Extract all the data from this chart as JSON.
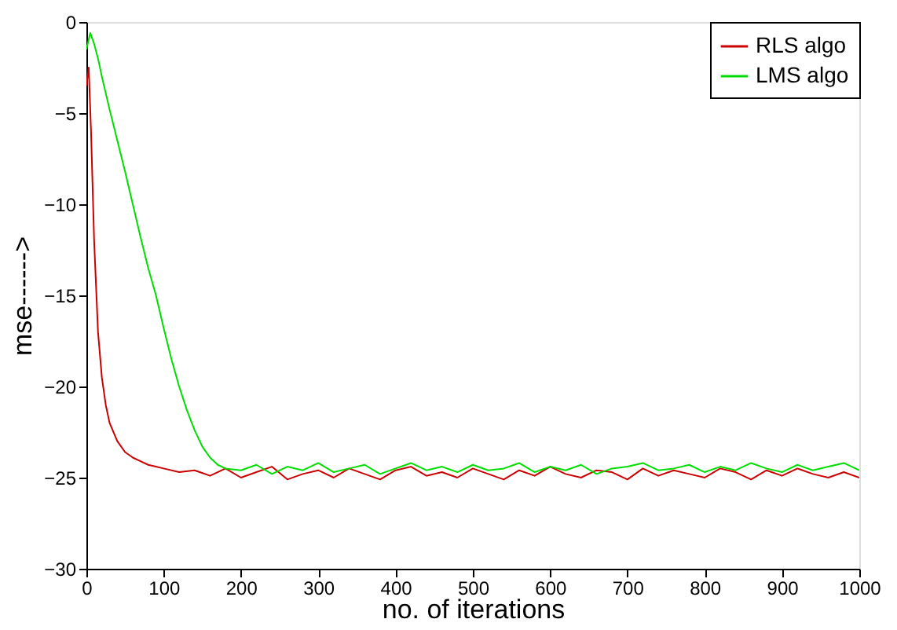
{
  "chart_data": {
    "type": "line",
    "xlabel": "no. of iterations",
    "ylabel": "mse------>",
    "xlim": [
      0,
      1000
    ],
    "xticks": [
      0,
      100,
      200,
      300,
      400,
      500,
      600,
      700,
      800,
      900,
      1000
    ],
    "ylim": [
      -30,
      0
    ],
    "yticks": [
      -30,
      -25,
      -20,
      -15,
      -10,
      -5,
      0
    ],
    "grid": false,
    "legend": "top right",
    "line_style": "solid",
    "marker": "none",
    "series": [
      {
        "name": "RLS algo",
        "color": "#cc0000",
        "x": [
          0,
          3,
          6,
          10,
          15,
          20,
          25,
          30,
          40,
          50,
          60,
          70,
          80,
          90,
          100,
          120,
          140,
          160,
          180,
          200,
          220,
          240,
          260,
          280,
          300,
          320,
          340,
          360,
          380,
          400,
          420,
          440,
          460,
          480,
          500,
          520,
          540,
          560,
          580,
          600,
          620,
          640,
          660,
          680,
          700,
          720,
          740,
          760,
          780,
          800,
          820,
          840,
          860,
          880,
          900,
          920,
          940,
          960,
          980,
          1000
        ],
        "values": [
          -3.5,
          -2.5,
          -6,
          -12,
          -17,
          -19.5,
          -21,
          -22,
          -23,
          -23.6,
          -23.9,
          -24.1,
          -24.3,
          -24.4,
          -24.5,
          -24.7,
          -24.6,
          -24.9,
          -24.5,
          -25.0,
          -24.7,
          -24.4,
          -25.1,
          -24.8,
          -24.6,
          -25.0,
          -24.5,
          -24.8,
          -25.1,
          -24.6,
          -24.4,
          -24.9,
          -24.7,
          -25.0,
          -24.5,
          -24.8,
          -25.1,
          -24.6,
          -24.9,
          -24.4,
          -24.8,
          -25.0,
          -24.6,
          -24.7,
          -25.1,
          -24.5,
          -24.9,
          -24.6,
          -24.8,
          -25.0,
          -24.5,
          -24.7,
          -25.1,
          -24.6,
          -24.9,
          -24.5,
          -24.8,
          -25.0,
          -24.7,
          -25.0
        ]
      },
      {
        "name": "LMS algo",
        "color": "#00dd00",
        "x": [
          0,
          5,
          10,
          15,
          20,
          30,
          40,
          50,
          60,
          70,
          80,
          90,
          100,
          110,
          120,
          130,
          140,
          150,
          160,
          170,
          180,
          200,
          220,
          240,
          260,
          280,
          300,
          320,
          340,
          360,
          380,
          400,
          420,
          440,
          460,
          480,
          500,
          520,
          540,
          560,
          580,
          600,
          620,
          640,
          660,
          680,
          700,
          720,
          740,
          760,
          780,
          800,
          820,
          840,
          860,
          880,
          900,
          920,
          940,
          960,
          980,
          1000
        ],
        "values": [
          -1.5,
          -0.6,
          -1.2,
          -2.0,
          -3.0,
          -4.8,
          -6.5,
          -8.2,
          -10.0,
          -11.8,
          -13.5,
          -15.0,
          -16.8,
          -18.5,
          -20.0,
          -21.3,
          -22.4,
          -23.3,
          -23.9,
          -24.3,
          -24.5,
          -24.6,
          -24.3,
          -24.8,
          -24.4,
          -24.6,
          -24.2,
          -24.7,
          -24.5,
          -24.3,
          -24.8,
          -24.5,
          -24.2,
          -24.6,
          -24.4,
          -24.7,
          -24.3,
          -24.6,
          -24.5,
          -24.2,
          -24.7,
          -24.4,
          -24.6,
          -24.3,
          -24.8,
          -24.5,
          -24.4,
          -24.2,
          -24.6,
          -24.5,
          -24.3,
          -24.7,
          -24.4,
          -24.6,
          -24.2,
          -24.5,
          -24.7,
          -24.3,
          -24.6,
          -24.4,
          -24.2,
          -24.6
        ]
      }
    ]
  }
}
